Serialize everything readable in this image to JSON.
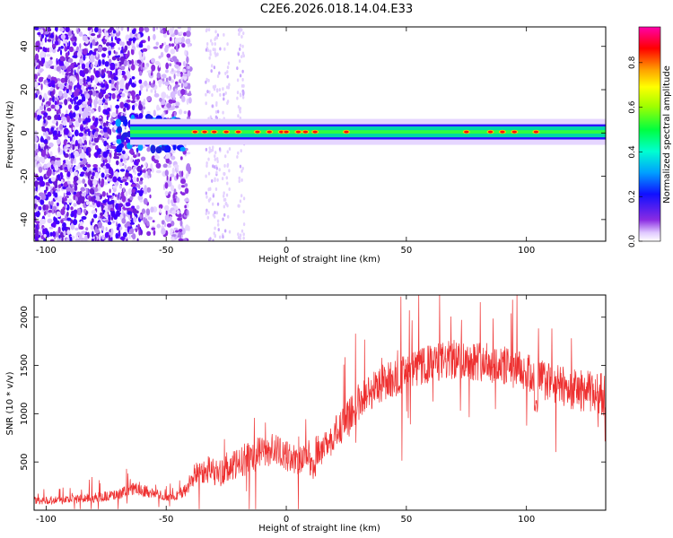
{
  "figure": {
    "title": "C2E6.2026.018.14.04.E33"
  },
  "chart_data": [
    {
      "type": "heatmap",
      "xlabel": "Height of straight line (km)",
      "ylabel": "Frequency (Hz)",
      "xlim": [
        -105,
        133
      ],
      "ylim": [
        -50,
        49
      ],
      "xticks": [
        -100,
        -50,
        0,
        50,
        100
      ],
      "yticks": [
        -40,
        -20,
        0,
        20,
        40
      ],
      "colorbar": {
        "label": "Normalized spectral amplitude",
        "range": [
          0,
          0.96
        ],
        "ticks": [
          "0.0",
          "0.2",
          "0.4",
          "0.6",
          "0.8"
        ],
        "tick_values": [
          0,
          0.2,
          0.4,
          0.6,
          0.8
        ],
        "colormap": "rainbow (white-violet-blue-cyan-green-yellow-red-magenta)"
      },
      "features": {
        "noise_region_x": [
          -105,
          -40
        ],
        "signal_band_frequency_hz": [
          -2,
          3
        ],
        "signal_band_x": [
          -65,
          133
        ],
        "peak_amplitude_heights_km": [
          -38,
          -34,
          -30,
          -25,
          -20,
          -12,
          -7,
          -2,
          0,
          5,
          8,
          12,
          25,
          75,
          85,
          90,
          95,
          104
        ]
      },
      "colors": {
        "background": "#ffffff"
      }
    },
    {
      "type": "line",
      "xlabel": "Height of straight line (km)",
      "ylabel": "SNR (10 * v/v)",
      "xlim": [
        -105,
        133
      ],
      "ylim": [
        0,
        2230
      ],
      "xticks": [
        -100,
        -50,
        0,
        50,
        100
      ],
      "yticks": [
        500,
        1000,
        1500,
        2000
      ],
      "series": [
        {
          "color": "#ee3030",
          "x": [
            -105,
            -90,
            -80,
            -70,
            -62,
            -55,
            -48,
            -42,
            -38,
            -33,
            -28,
            -22,
            -15,
            -10,
            -5,
            0,
            5,
            10,
            15,
            20,
            25,
            30,
            35,
            40,
            50,
            60,
            70,
            80,
            90,
            100,
            110,
            120,
            133
          ],
          "y": [
            100,
            110,
            130,
            160,
            230,
            170,
            130,
            200,
            380,
            430,
            380,
            450,
            560,
            600,
            640,
            560,
            520,
            600,
            620,
            780,
            920,
            1120,
            1230,
            1320,
            1420,
            1520,
            1560,
            1550,
            1500,
            1420,
            1320,
            1250,
            1200
          ],
          "noise_amplitude": [
            80,
            90,
            100,
            110,
            150,
            110,
            80,
            150,
            240,
            300,
            280,
            320,
            350,
            350,
            330,
            310,
            300,
            320,
            330,
            360,
            380,
            400,
            400,
            400,
            400,
            400,
            420,
            420,
            420,
            420,
            420,
            430,
            450
          ]
        }
      ]
    }
  ]
}
